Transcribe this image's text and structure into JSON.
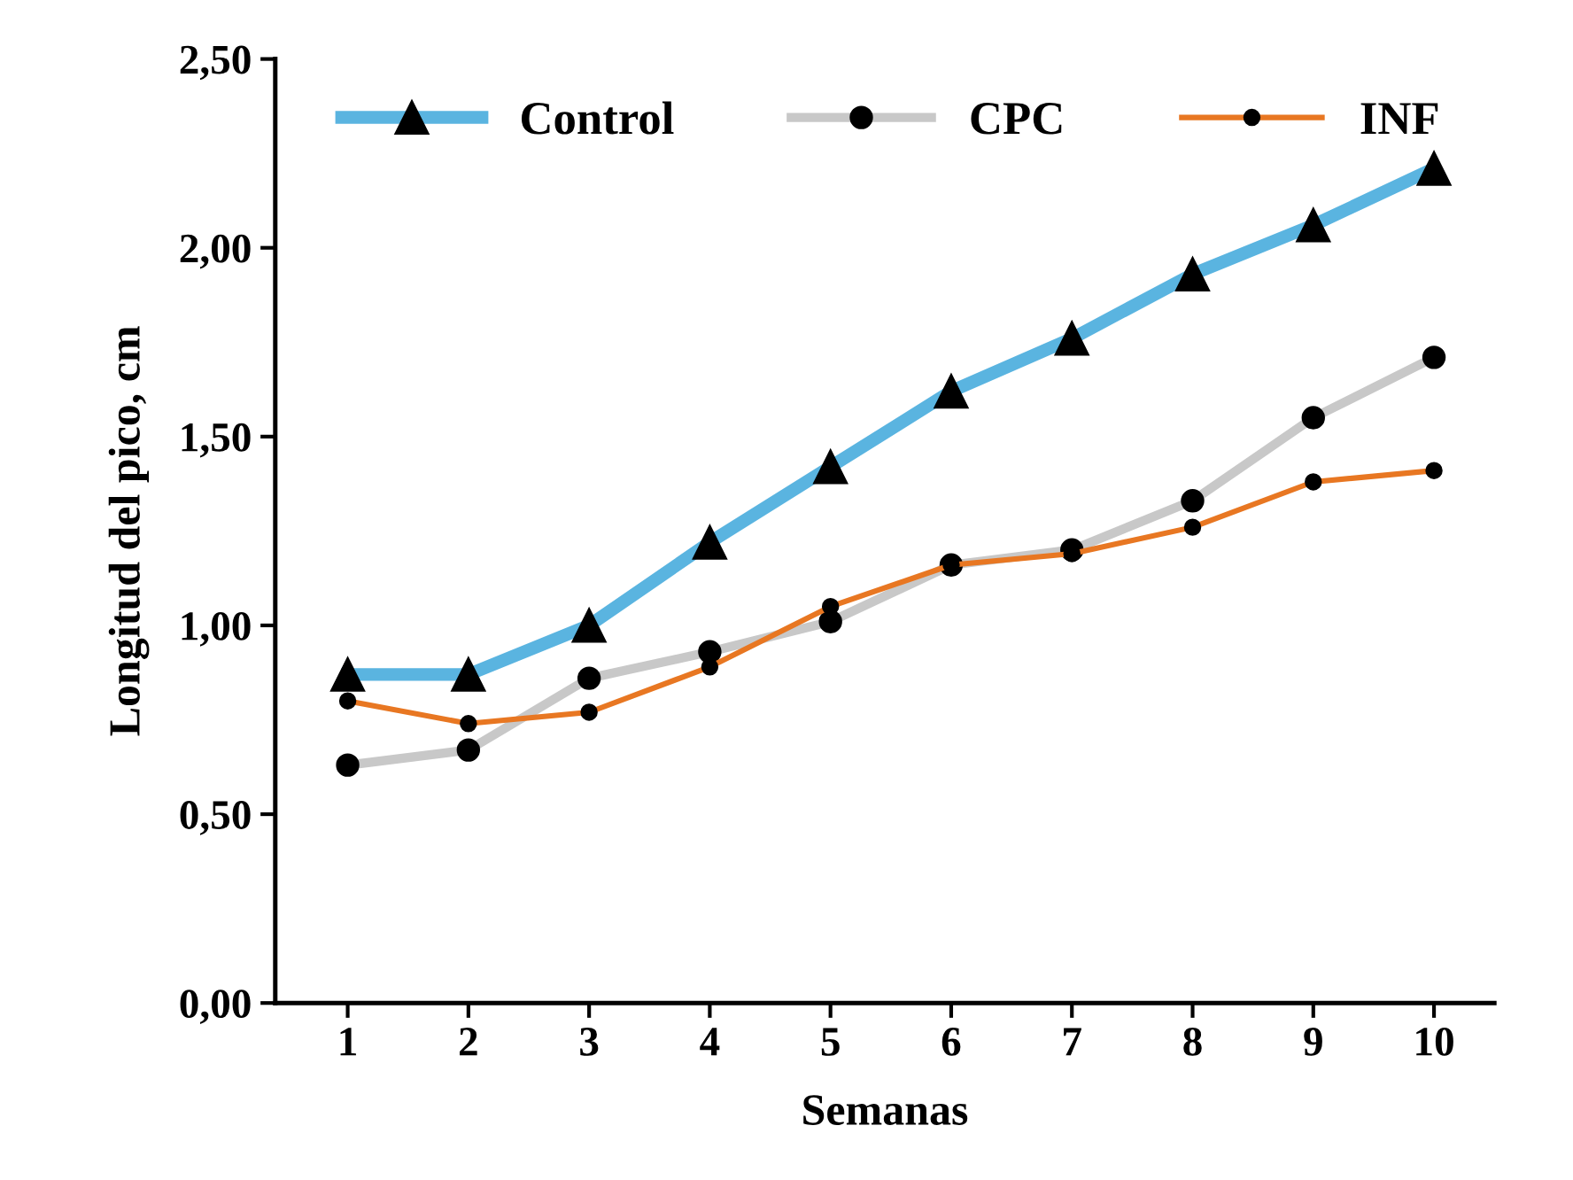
{
  "chart_data": {
    "type": "line",
    "xlabel": "Semanas",
    "ylabel": "Longitud del pico, cm",
    "categories": [
      "1",
      "2",
      "3",
      "4",
      "5",
      "6",
      "7",
      "8",
      "9",
      "10"
    ],
    "ylim": [
      0,
      2.5
    ],
    "yticks": [
      {
        "value": 0,
        "label": "0,00"
      },
      {
        "value": 0.5,
        "label": "0,50"
      },
      {
        "value": 1,
        "label": "1,00"
      },
      {
        "value": 1.5,
        "label": "1,50"
      },
      {
        "value": 2,
        "label": "2,00"
      },
      {
        "value": 2.5,
        "label": "2,50"
      }
    ],
    "grid": false,
    "legend": "top left",
    "line_style": "solid",
    "series": [
      {
        "name": "Control",
        "color": "#5ab4e0",
        "marker": "triangle",
        "values": [
          0.87,
          0.87,
          1.0,
          1.22,
          1.42,
          1.62,
          1.76,
          1.93,
          2.06,
          2.21
        ]
      },
      {
        "name": "CPC",
        "color": "#c8c8c8",
        "marker": "circle",
        "values": [
          0.63,
          0.67,
          0.86,
          0.93,
          1.01,
          1.16,
          1.2,
          1.33,
          1.55,
          1.71
        ]
      },
      {
        "name": "INF",
        "color": "#e87722",
        "marker": "circle",
        "values": [
          0.8,
          0.74,
          0.77,
          0.89,
          1.05,
          1.16,
          1.19,
          1.26,
          1.38,
          1.41
        ]
      }
    ]
  }
}
